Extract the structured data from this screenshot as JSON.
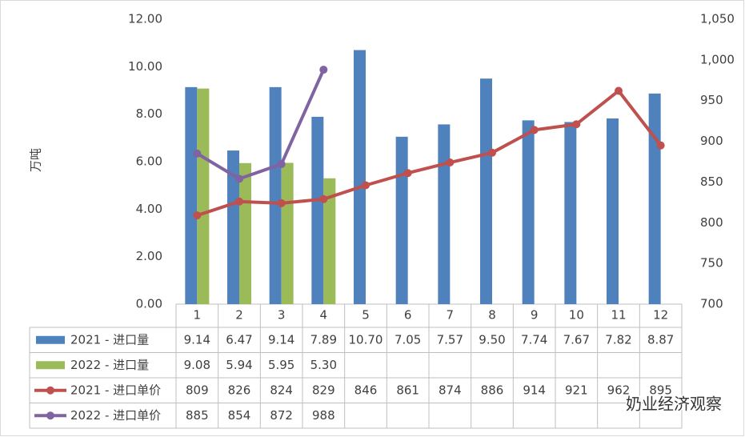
{
  "chart_data": {
    "type": "bar",
    "y_axis_label": "万吨",
    "watermark": "奶业经济观察",
    "categories": [
      "1",
      "2",
      "3",
      "4",
      "5",
      "6",
      "7",
      "8",
      "9",
      "10",
      "11",
      "12"
    ],
    "series": [
      {
        "name": "2021 - 进口量",
        "type": "bar",
        "color": "#4f81bd",
        "values": [
          9.14,
          6.47,
          9.14,
          7.89,
          10.7,
          7.05,
          7.57,
          9.5,
          7.74,
          7.67,
          7.82,
          8.87
        ],
        "value_labels": [
          "9.14",
          "6.47",
          "9.14",
          "7.89",
          "10.70",
          "7.05",
          "7.57",
          "9.50",
          "7.74",
          "7.67",
          "7.82",
          "8.87"
        ]
      },
      {
        "name": "2022 - 进口量",
        "type": "bar",
        "color": "#9bbb59",
        "values": [
          9.08,
          5.94,
          5.95,
          5.3,
          null,
          null,
          null,
          null,
          null,
          null,
          null,
          null
        ],
        "value_labels": [
          "9.08",
          "5.94",
          "5.95",
          "5.30",
          null,
          null,
          null,
          null,
          null,
          null,
          null,
          null
        ]
      },
      {
        "name": "2021 - 进口单价",
        "type": "line",
        "axis": "y2",
        "color": "#c0504d",
        "values": [
          809,
          826,
          824,
          829,
          846,
          861,
          874,
          886,
          914,
          921,
          962,
          895
        ]
      },
      {
        "name": "2022 - 进口单价",
        "type": "line",
        "axis": "y2",
        "color": "#8064a2",
        "values": [
          885,
          854,
          872,
          988,
          null,
          null,
          null,
          null,
          null,
          null,
          null,
          null
        ]
      }
    ],
    "ylim": [
      0,
      12
    ],
    "yticks": [
      {
        "value": 0,
        "label": "0.00"
      },
      {
        "value": 2,
        "label": "2.00"
      },
      {
        "value": 4,
        "label": "4.00"
      },
      {
        "value": 6,
        "label": "6.00"
      },
      {
        "value": 8,
        "label": "8.00"
      },
      {
        "value": 10,
        "label": "10.00"
      },
      {
        "value": 12,
        "label": "12.00"
      }
    ],
    "y2lim": [
      700,
      1050
    ],
    "y2ticks": [
      700,
      750,
      800,
      850,
      900,
      950,
      {
        "value": 1000,
        "label": "1,000"
      },
      {
        "value": 1050,
        "label": "1,050"
      }
    ]
  }
}
